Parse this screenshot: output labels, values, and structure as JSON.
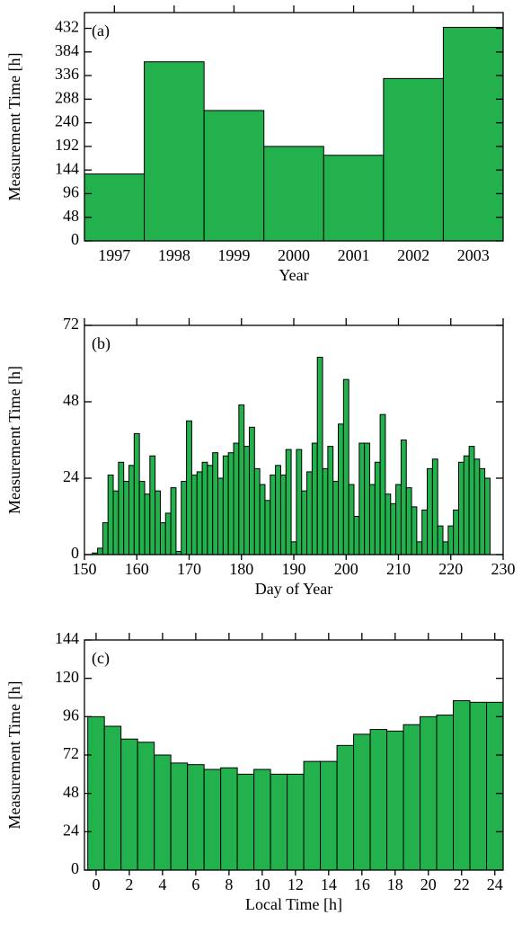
{
  "chart_data": [
    {
      "type": "bar",
      "label": "(a)",
      "xlabel": "Year",
      "ylabel": "Measurement Time [h]",
      "color": "#22b14c",
      "categories": [
        "1997",
        "1998",
        "1999",
        "2000",
        "2001",
        "2002",
        "2003"
      ],
      "values": [
        136,
        364,
        265,
        192,
        174,
        330,
        434
      ],
      "ylim": [
        0,
        464
      ],
      "yticks": [
        0,
        48,
        96,
        144,
        192,
        240,
        288,
        336,
        384,
        432
      ],
      "grid": false
    },
    {
      "type": "bar",
      "label": "(b)",
      "xlabel": "Day of Year",
      "ylabel": "Measurement Time [h]",
      "color": "#22b14c",
      "x": [
        152,
        153,
        154,
        155,
        156,
        157,
        158,
        159,
        160,
        161,
        162,
        163,
        164,
        165,
        166,
        167,
        168,
        169,
        170,
        171,
        172,
        173,
        174,
        175,
        176,
        177,
        178,
        179,
        180,
        181,
        182,
        183,
        184,
        185,
        186,
        187,
        188,
        189,
        190,
        191,
        192,
        193,
        194,
        195,
        196,
        197,
        198,
        199,
        200,
        201,
        202,
        203,
        204,
        205,
        206,
        207,
        208,
        209,
        210,
        211,
        212,
        213,
        214,
        215,
        216,
        217,
        218,
        219,
        220,
        221,
        222,
        223,
        224,
        225,
        226,
        227
      ],
      "values": [
        0.5,
        2,
        10,
        25,
        20,
        29,
        23,
        28,
        38,
        23,
        19,
        31,
        20,
        10,
        13,
        21,
        1,
        23,
        42,
        25,
        26,
        29,
        28,
        32,
        24,
        31,
        32,
        35,
        47,
        34,
        40,
        27,
        22,
        17,
        25,
        28,
        25,
        33,
        4,
        33,
        20,
        26,
        35,
        62,
        27,
        34,
        23,
        41,
        55,
        22,
        12,
        35,
        35,
        22,
        29,
        44,
        19,
        16,
        22,
        36,
        21,
        15,
        4,
        14,
        27,
        30,
        9,
        4,
        9,
        14,
        29,
        31,
        34,
        30,
        27,
        24
      ],
      "xlim": [
        150,
        230
      ],
      "xticks": [
        150,
        160,
        170,
        180,
        190,
        200,
        210,
        220,
        230
      ],
      "ylim": [
        0,
        72
      ],
      "yticks": [
        0,
        24,
        48,
        72
      ],
      "grid": false
    },
    {
      "type": "bar",
      "label": "(c)",
      "xlabel": "Local Time [h]",
      "ylabel": "Measurement Time [h]",
      "color": "#22b14c",
      "x": [
        0,
        1,
        2,
        3,
        4,
        5,
        6,
        7,
        8,
        9,
        10,
        11,
        12,
        13,
        14,
        15,
        16,
        17,
        18,
        19,
        20,
        21,
        22,
        23,
        24
      ],
      "values": [
        96,
        90,
        82,
        80,
        72,
        67,
        66,
        63,
        64,
        60,
        63,
        60,
        60,
        68,
        68,
        78,
        85,
        88,
        87,
        91,
        96,
        97,
        106,
        105,
        105
      ],
      "xlim": [
        -0.7,
        24.5
      ],
      "xticks": [
        0,
        2,
        4,
        6,
        8,
        10,
        12,
        14,
        16,
        18,
        20,
        22,
        24
      ],
      "ylim": [
        0,
        144
      ],
      "yticks": [
        0,
        24,
        48,
        72,
        96,
        120,
        144
      ],
      "grid": false
    }
  ]
}
